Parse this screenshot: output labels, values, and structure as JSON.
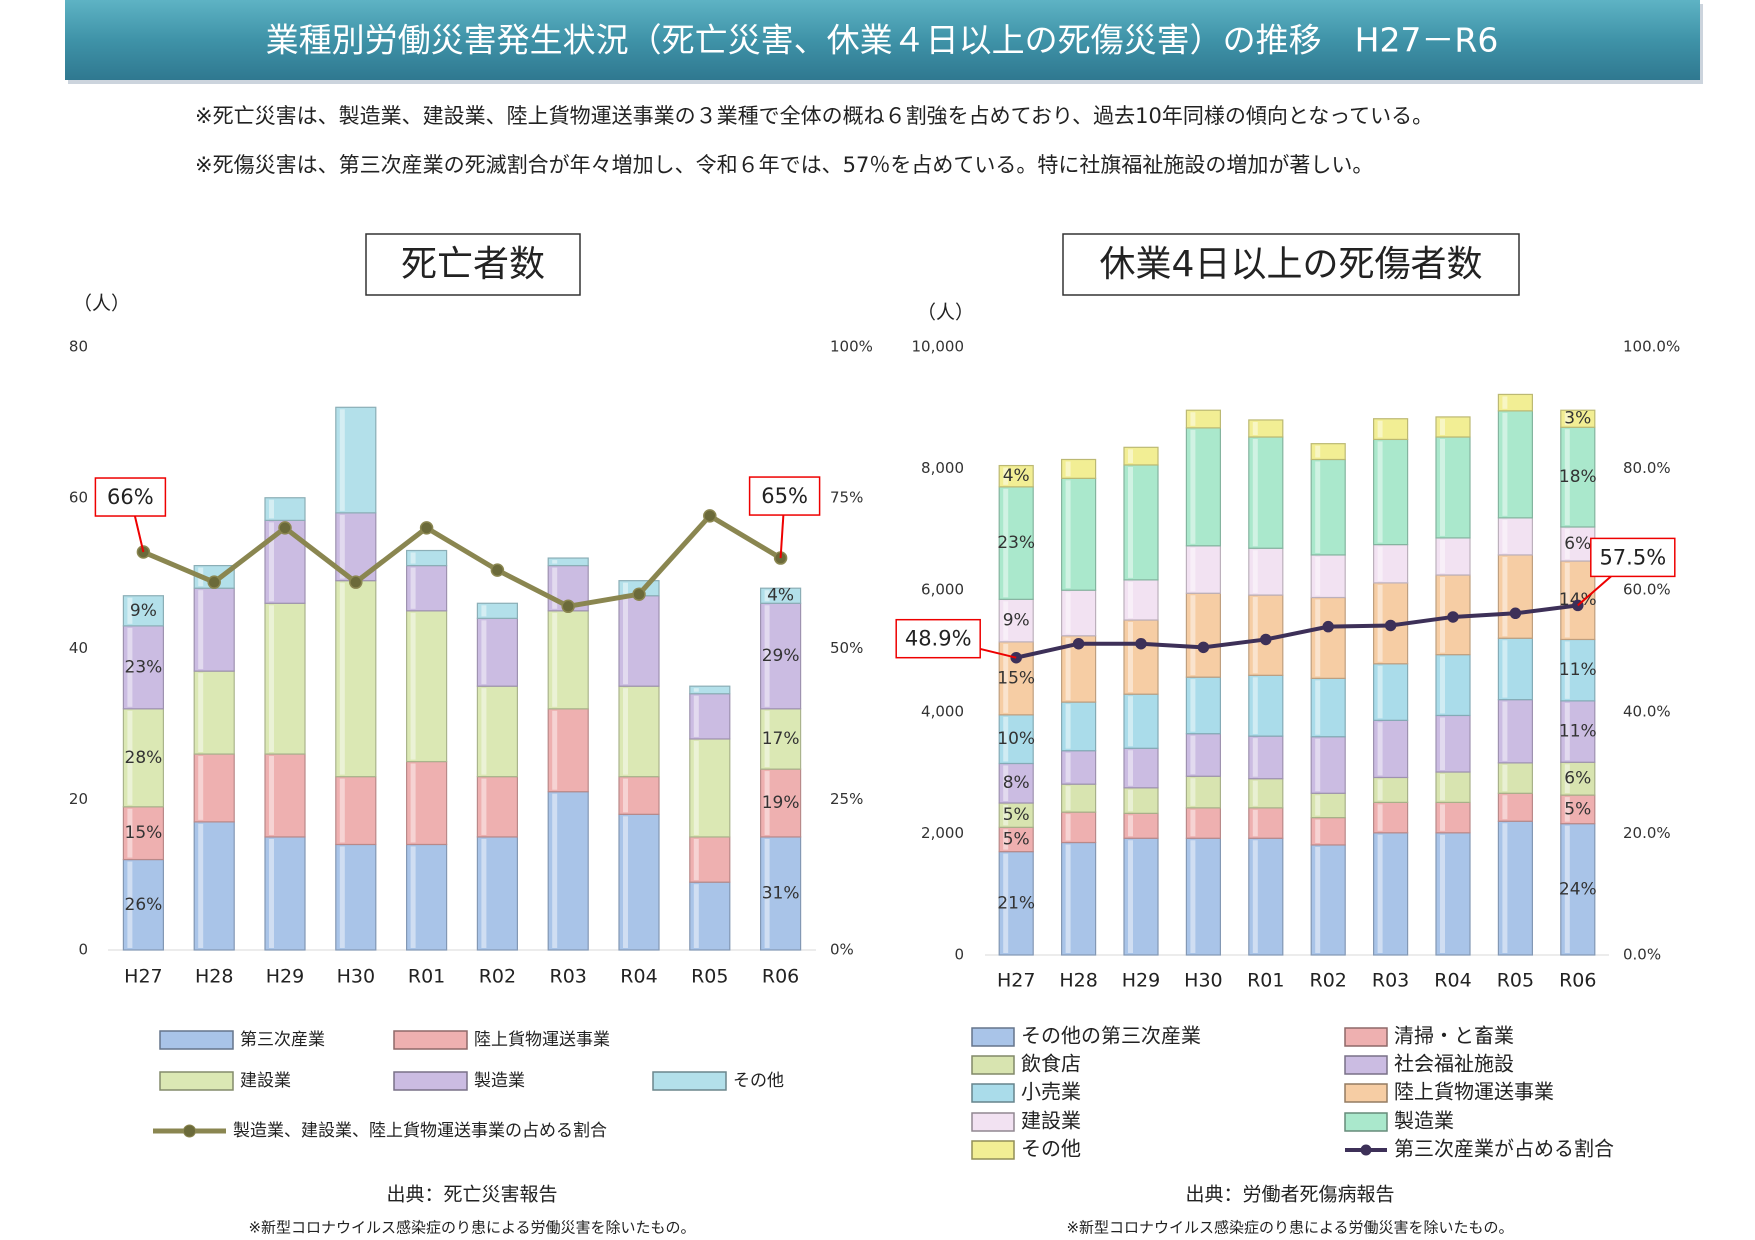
{
  "header": {
    "title": "業種別労働災害発生状況（死亡災害、休業４日以上の死傷災害）の推移　H27－R6"
  },
  "notes": [
    "※死亡災害は、製造業、建設業、陸上貨物運送事業の３業種で全体の概ね６割強を占めており、過去10年同様の傾向となっている。",
    "※死傷災害は、第三次産業の死滅割合が年々増加し、令和６年では、57％を占めている。特に社旗福祉施設の増加が著しい。"
  ],
  "chart_data": [
    {
      "type": "stacked-bar",
      "title": "死亡者数",
      "y_unit": "（人）",
      "source": "出典：死亡災害報告",
      "footnote": "※新型コロナウイルス感染症のり患による労働災害を除いたもの。",
      "categories": [
        "H27",
        "H28",
        "H29",
        "H30",
        "R01",
        "R02",
        "R03",
        "R04",
        "R05",
        "R06"
      ],
      "ylim": [
        0,
        80
      ],
      "yticks": [
        0,
        20,
        40,
        60,
        80
      ],
      "y2lim": [
        0,
        100
      ],
      "y2ticks": [
        {
          "value": 0,
          "label": "0%"
        },
        {
          "value": 25,
          "label": "25%"
        },
        {
          "value": 50,
          "label": "50%"
        },
        {
          "value": 75,
          "label": "75%"
        },
        {
          "value": 100,
          "label": "100%"
        }
      ],
      "grid": false,
      "series": [
        {
          "name": "第三次産業",
          "color": "#a9c4e8",
          "values": [
            12,
            17,
            15,
            14,
            14,
            15,
            21,
            18,
            9,
            15
          ],
          "share_labels": [
            "26%",
            null,
            null,
            null,
            null,
            null,
            null,
            null,
            null,
            "31%"
          ]
        },
        {
          "name": "陸上貨物運送事業",
          "color": "#eeb0b0",
          "values": [
            7,
            9,
            11,
            9,
            11,
            8,
            11,
            5,
            6,
            9
          ],
          "share_labels": [
            "15%",
            null,
            null,
            null,
            null,
            null,
            null,
            null,
            null,
            "19%"
          ]
        },
        {
          "name": "建設業",
          "color": "#dbe8b4",
          "values": [
            13,
            11,
            20,
            26,
            20,
            12,
            13,
            12,
            13,
            8
          ],
          "share_labels": [
            "28%",
            null,
            null,
            null,
            null,
            null,
            null,
            null,
            null,
            "17%"
          ]
        },
        {
          "name": "製造業",
          "color": "#cbbce2",
          "values": [
            11,
            11,
            11,
            9,
            6,
            9,
            6,
            12,
            6,
            14
          ],
          "share_labels": [
            "23%",
            null,
            null,
            null,
            null,
            null,
            null,
            null,
            null,
            "29%"
          ]
        },
        {
          "name": "その他",
          "color": "#b3e0ea",
          "values": [
            4,
            3,
            3,
            14,
            2,
            2,
            1,
            2,
            1,
            2
          ],
          "share_labels": [
            "9%",
            null,
            null,
            null,
            null,
            null,
            null,
            null,
            null,
            "4%"
          ]
        },
        {
          "name": "製造業、建設業、陸上貨物運送事業の占める割合",
          "type": "line",
          "axis": "y2",
          "color": "#8a8650",
          "values": [
            66,
            61,
            70,
            61,
            70,
            63,
            57,
            59,
            72,
            65
          ],
          "value_labels": [
            "66%",
            null,
            null,
            null,
            null,
            null,
            null,
            null,
            null,
            "65%"
          ]
        }
      ]
    },
    {
      "type": "stacked-bar",
      "title": "休業4日以上の死傷者数",
      "y_unit": "（人）",
      "source": "出典：労働者死傷病報告",
      "footnote": "※新型コロナウイルス感染症のり患による労働災害を除いたもの。",
      "categories": [
        "H27",
        "H28",
        "H29",
        "H30",
        "R01",
        "R02",
        "R03",
        "R04",
        "R05",
        "R06"
      ],
      "ylim": [
        0,
        10000
      ],
      "yticks": [
        0,
        {
          "value": 2000,
          "label": "2,000"
        },
        {
          "value": 4000,
          "label": "4,000"
        },
        {
          "value": 6000,
          "label": "6,000"
        },
        {
          "value": 8000,
          "label": "8,000"
        },
        {
          "value": 10000,
          "label": "10,000"
        }
      ],
      "y2lim": [
        0,
        100
      ],
      "y2ticks": [
        {
          "value": 0,
          "label": "0.0%"
        },
        {
          "value": 20,
          "label": "20.0%"
        },
        {
          "value": 40,
          "label": "40.0%"
        },
        {
          "value": 60,
          "label": "60.0%"
        },
        {
          "value": 80,
          "label": "80.0%"
        },
        {
          "value": 100,
          "label": "100.0%"
        }
      ],
      "grid": false,
      "series": [
        {
          "name": "その他の第三次産業",
          "color": "#a9c4e8",
          "values": [
            1700,
            1850,
            1920,
            1920,
            1920,
            1810,
            2010,
            2010,
            2200,
            2160
          ],
          "share_labels": [
            "21%",
            null,
            null,
            null,
            null,
            null,
            null,
            null,
            null,
            "24%"
          ]
        },
        {
          "name": "清掃・と畜業",
          "color": "#eeb0b0",
          "values": [
            400,
            500,
            410,
            500,
            500,
            450,
            500,
            500,
            460,
            470
          ],
          "share_labels": [
            "5%",
            null,
            null,
            null,
            null,
            null,
            null,
            null,
            null,
            "5%"
          ]
        },
        {
          "name": "飲食店",
          "color": "#d8e4b0",
          "values": [
            400,
            460,
            420,
            520,
            480,
            400,
            410,
            500,
            500,
            540
          ],
          "share_labels": [
            "5%",
            null,
            null,
            null,
            null,
            null,
            null,
            null,
            null,
            "6%"
          ]
        },
        {
          "name": "社会福祉施設",
          "color": "#cbbce2",
          "values": [
            650,
            550,
            650,
            700,
            700,
            930,
            940,
            930,
            1040,
            1010
          ],
          "share_labels": [
            "8%",
            null,
            null,
            null,
            null,
            null,
            null,
            null,
            null,
            "11%"
          ]
        },
        {
          "name": "小売業",
          "color": "#aadcea",
          "values": [
            800,
            800,
            890,
            930,
            1000,
            960,
            930,
            1000,
            1010,
            1010
          ],
          "share_labels": [
            "10%",
            null,
            null,
            null,
            null,
            null,
            null,
            null,
            null,
            "11%"
          ]
        },
        {
          "name": "陸上貨物運送事業",
          "color": "#f6cda4",
          "values": [
            1200,
            1090,
            1220,
            1380,
            1320,
            1330,
            1330,
            1310,
            1370,
            1290
          ],
          "share_labels": [
            "15%",
            null,
            null,
            null,
            null,
            null,
            null,
            null,
            null,
            "14%"
          ]
        },
        {
          "name": "建設業",
          "color": "#f2e2f2",
          "values": [
            700,
            750,
            660,
            780,
            770,
            700,
            630,
            610,
            610,
            560
          ],
          "share_labels": [
            "9%",
            null,
            null,
            null,
            null,
            null,
            null,
            null,
            null,
            "6%"
          ]
        },
        {
          "name": "製造業",
          "color": "#aae8cc",
          "values": [
            1850,
            1840,
            1890,
            1940,
            1830,
            1570,
            1730,
            1660,
            1760,
            1640
          ],
          "share_labels": [
            "23%",
            null,
            null,
            null,
            null,
            null,
            null,
            null,
            null,
            "18%"
          ]
        },
        {
          "name": "その他",
          "color": "#f2ee94",
          "values": [
            350,
            310,
            290,
            290,
            280,
            260,
            340,
            330,
            270,
            280
          ],
          "share_labels": [
            "4%",
            null,
            null,
            null,
            null,
            null,
            null,
            null,
            null,
            "3%"
          ]
        },
        {
          "name": "第三次産業が占める割合",
          "type": "line",
          "axis": "y2",
          "color": "#3d3058",
          "values": [
            48.9,
            51.2,
            51.2,
            50.6,
            51.9,
            54.0,
            54.2,
            55.6,
            56.2,
            57.5
          ],
          "value_labels": [
            "48.9%",
            null,
            null,
            null,
            null,
            null,
            null,
            null,
            null,
            "57.5%"
          ]
        }
      ]
    }
  ]
}
